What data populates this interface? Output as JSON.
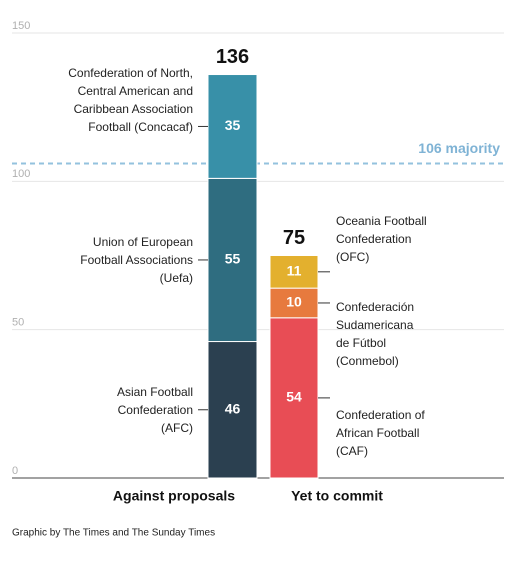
{
  "chart_data": {
    "type": "stacked-bar",
    "categories": [
      "Against proposals",
      "Yet to commit"
    ],
    "series": [
      {
        "name": "Asian Football Confederation (AFC)",
        "color": "#2b4050",
        "values": [
          46,
          null
        ]
      },
      {
        "name": "Union of European Football Associations (Uefa)",
        "color": "#2f6d80",
        "values": [
          55,
          null
        ]
      },
      {
        "name": "Confederation of North, Central American and Caribbean Association Football (Concacaf)",
        "color": "#3890a8",
        "values": [
          35,
          null
        ]
      },
      {
        "name": "Confederation of African Football (CAF)",
        "color": "#e84d55",
        "values": [
          null,
          54
        ]
      },
      {
        "name": "Confederación Sudamericana de Fútbol (Conmebol)",
        "color": "#e77a3e",
        "values": [
          null,
          10
        ]
      },
      {
        "name": "Oceania Football Confederation (OFC)",
        "color": "#e3b02e",
        "values": [
          null,
          11
        ]
      }
    ],
    "totals": [
      136,
      75
    ],
    "reference_line": {
      "value": 106,
      "label": "106 majority"
    },
    "ylim": [
      0,
      150
    ],
    "yticks": [
      0,
      50,
      100,
      150
    ],
    "grid": true,
    "source": "Graphic by The Times and The Sunday Times"
  }
}
